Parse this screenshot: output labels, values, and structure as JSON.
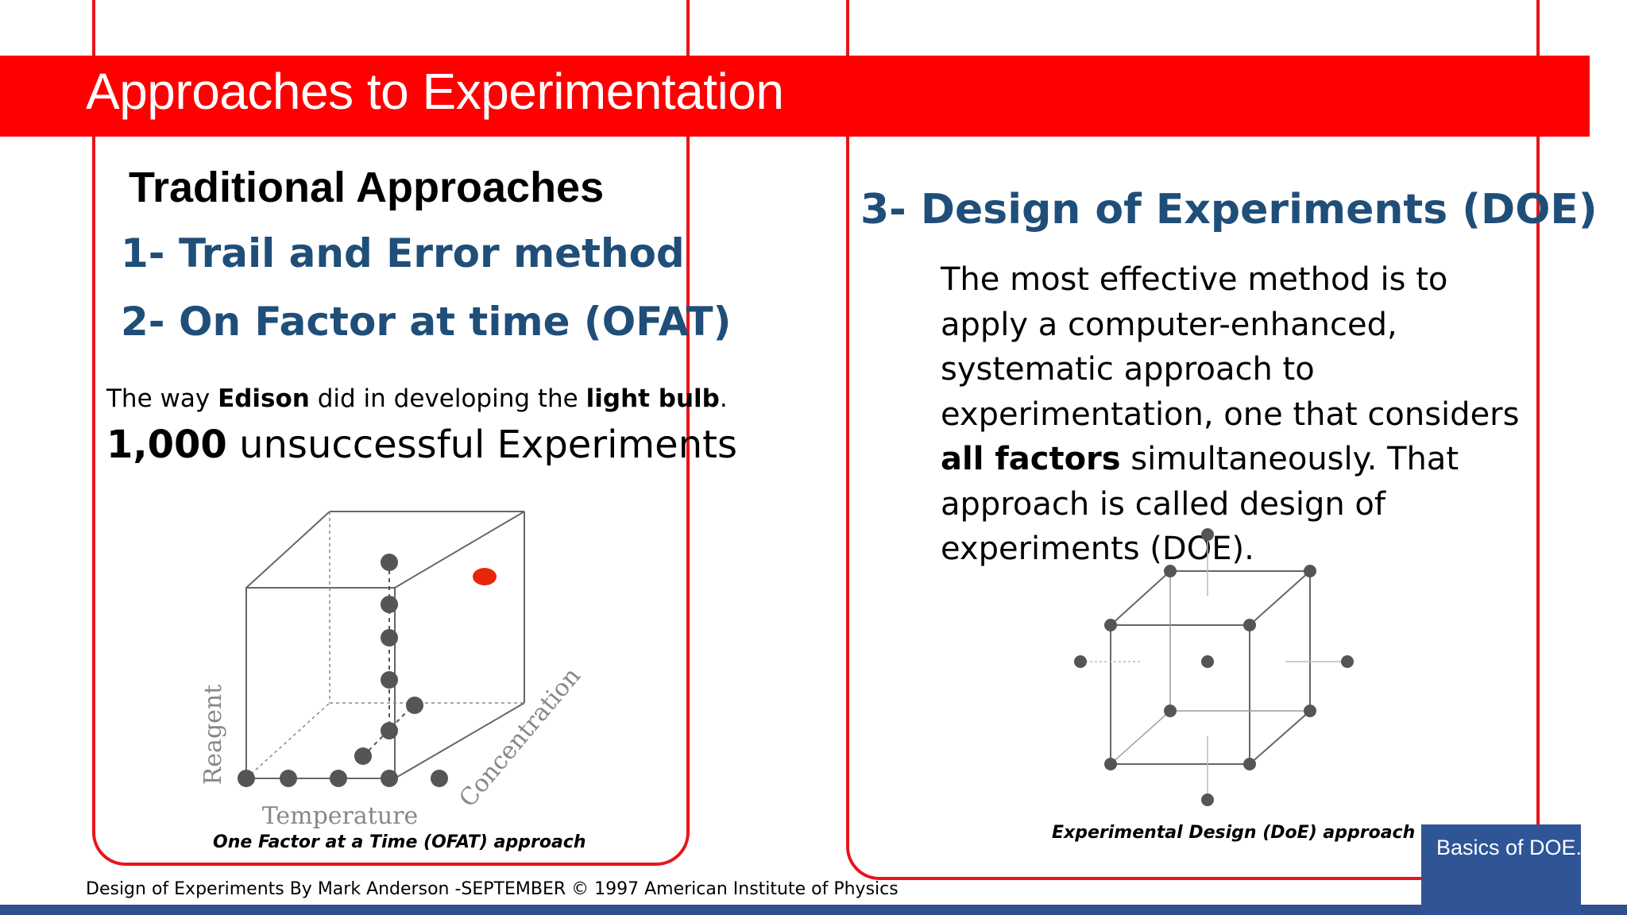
{
  "title": "Approaches to Experimentation",
  "traditional": {
    "heading": "Traditional Approaches",
    "method_1": "1- Trail and Error method",
    "method_2": "2- On Factor at time (OFAT)",
    "edison": {
      "p1": "The way ",
      "b1": "Edison",
      "p2": " did in developing the ",
      "b2": "light bulb",
      "p3": "."
    },
    "experiments": {
      "count": "1,000",
      "rest": " unsuccessful Experiments"
    }
  },
  "doe": {
    "heading": "3- Design of Experiments (DOE)",
    "paragraph": {
      "p1": "The most effective method is to apply a computer-enhanced, systematic approach to experimentation, one that considers ",
      "bold": "all factors",
      "p2": " simultaneously. That approach is called design of experiments (DOE)."
    }
  },
  "figures": {
    "ofat": {
      "axis_y": "Reagent",
      "axis_x": "Temperature",
      "axis_z": "Concentration",
      "caption": "One Factor at a Time (OFAT) approach"
    },
    "doe": {
      "caption": "Experimental Design (DoE) approach"
    }
  },
  "footer": "Design of Experiments By Mark Anderson -SEPTEMBER © 1997 American Institute of Physics",
  "badge": "Basics of DOE.",
  "colors": {
    "accent_red": "#ff0000",
    "heading_blue": "#1f4e79",
    "badge_blue": "#2f5597",
    "highlight_point": "#e8260c",
    "point_gray": "#555555"
  }
}
